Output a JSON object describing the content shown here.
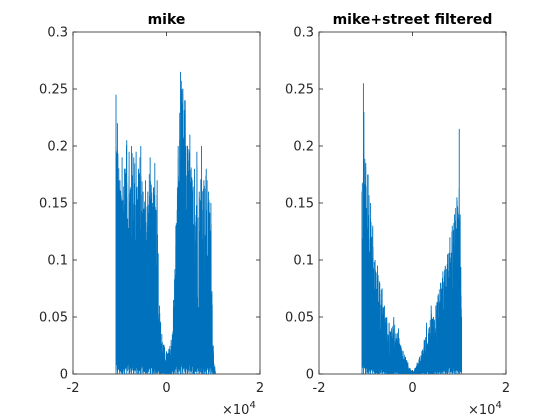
{
  "figure": {
    "background": "#ffffff"
  },
  "chart_data": [
    {
      "type": "line",
      "title": "mike",
      "xlabel": "",
      "ylabel": "",
      "xlim": [
        -20000,
        20000
      ],
      "ylim": [
        0,
        0.3
      ],
      "x_ticks": [
        -20000,
        0,
        20000
      ],
      "x_tick_labels": [
        "-2",
        "0",
        "2"
      ],
      "x_multiplier": {
        "base": "×10",
        "exponent": "4"
      },
      "y_ticks": [
        0,
        0.05,
        0.1,
        0.15,
        0.2,
        0.25,
        0.3
      ],
      "y_tick_labels": [
        "0",
        "0.05",
        "0.1",
        "0.15",
        "0.2",
        "0.25",
        "0.3"
      ],
      "grid": false,
      "color": "#0072bd",
      "series": [
        {
          "x": [
            -10800,
            -10500,
            -10000,
            -9500,
            -9000,
            -8500,
            -8000,
            -7500,
            -7000,
            -6500,
            -6000,
            -5500,
            -5000,
            -4500,
            -4000,
            -3500,
            -3000,
            -2500,
            -2000,
            -1500,
            -1000,
            -500,
            0,
            500,
            1000,
            1500,
            2000,
            2500,
            3000,
            3500,
            4000,
            4500,
            5000,
            5500,
            6000,
            6500,
            7000,
            7500,
            8000,
            8500,
            9000,
            9500,
            10000,
            10500
          ],
          "y": [
            0.245,
            0.22,
            0.17,
            0.19,
            0.18,
            0.205,
            0.195,
            0.2,
            0.19,
            0.195,
            0.18,
            0.2,
            0.16,
            0.17,
            0.16,
            0.19,
            0.15,
            0.185,
            0.17,
            0.06,
            0.035,
            0.025,
            0.02,
            0.022,
            0.03,
            0.065,
            0.13,
            0.2,
            0.265,
            0.25,
            0.24,
            0.2,
            0.21,
            0.17,
            0.18,
            0.195,
            0.16,
            0.2,
            0.17,
            0.18,
            0.16,
            0.15,
            0.025,
            0.0
          ]
        }
      ]
    },
    {
      "type": "line",
      "title": "mike+street filtered",
      "xlabel": "",
      "ylabel": "",
      "xlim": [
        -20000,
        20000
      ],
      "ylim": [
        0,
        0.3
      ],
      "x_ticks": [
        -20000,
        0,
        20000
      ],
      "x_tick_labels": [
        "-2",
        "0",
        "2"
      ],
      "x_multiplier": {
        "base": "×10",
        "exponent": "4"
      },
      "y_ticks": [
        0,
        0.05,
        0.1,
        0.15,
        0.2,
        0.25,
        0.3
      ],
      "y_tick_labels": [
        "0",
        "0.05",
        "0.1",
        "0.15",
        "0.2",
        "0.25",
        "0.3"
      ],
      "grid": false,
      "color": "#0072bd",
      "series": [
        {
          "x": [
            -10800,
            -10500,
            -10000,
            -9500,
            -9000,
            -8500,
            -8000,
            -7500,
            -7000,
            -6500,
            -6000,
            -5500,
            -5000,
            -4500,
            -4000,
            -3500,
            -3000,
            -2500,
            -2000,
            -1500,
            -1000,
            -500,
            0,
            500,
            1000,
            1500,
            2000,
            2500,
            3000,
            3500,
            4000,
            4500,
            5000,
            5500,
            6000,
            6500,
            7000,
            7500,
            8000,
            8500,
            9000,
            9500,
            10000,
            10500
          ],
          "y": [
            0.16,
            0.255,
            0.185,
            0.175,
            0.15,
            0.13,
            0.1,
            0.095,
            0.08,
            0.075,
            0.06,
            0.05,
            0.045,
            0.04,
            0.05,
            0.035,
            0.04,
            0.025,
            0.02,
            0.015,
            0.01,
            0.005,
            0.002,
            0.005,
            0.01,
            0.015,
            0.02,
            0.03,
            0.045,
            0.04,
            0.06,
            0.05,
            0.06,
            0.07,
            0.08,
            0.09,
            0.095,
            0.105,
            0.12,
            0.13,
            0.14,
            0.155,
            0.215,
            0.05
          ]
        }
      ]
    }
  ]
}
